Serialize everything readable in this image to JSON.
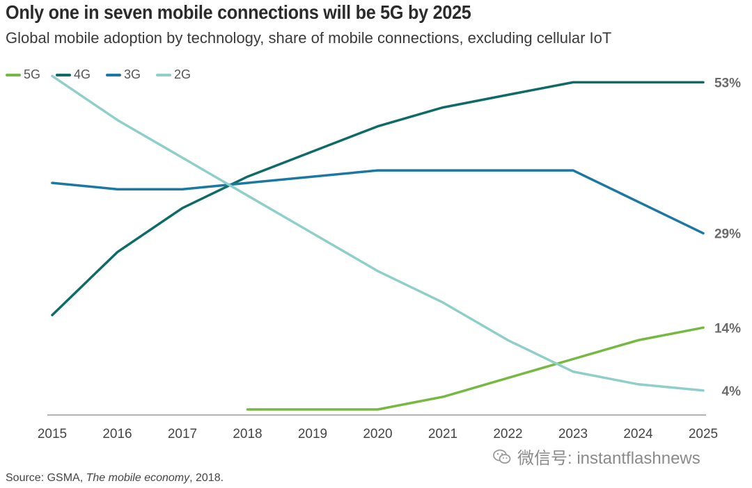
{
  "header": {
    "title": "Only one in seven mobile connections will be 5G by 2025",
    "subtitle": "Global mobile adoption by technology, share of mobile connections, excluding cellular IoT"
  },
  "source": {
    "prefix": "Source: GSMA, ",
    "publication": "The mobile economy",
    "suffix": ", 2018."
  },
  "watermark": {
    "text": "微信号: instantflashnews"
  },
  "chart_data": {
    "type": "line",
    "title": "Only one in seven mobile connections will be 5G by 2025",
    "subtitle": "Global mobile adoption by technology, share of mobile connections, excluding cellular IoT",
    "xlabel": "",
    "ylabel": "",
    "x": [
      "2015",
      "2016",
      "2017",
      "2018",
      "2019",
      "2020",
      "2021",
      "2022",
      "2023",
      "2024",
      "2025"
    ],
    "ylim": [
      0,
      60
    ],
    "grid": false,
    "legend": "top-left",
    "series": [
      {
        "name": "5G",
        "color": "#76b942",
        "values": [
          null,
          null,
          null,
          1,
          1,
          1,
          3,
          6,
          9,
          12,
          14
        ],
        "end_label": "14%"
      },
      {
        "name": "4G",
        "color": "#0f6b68",
        "values": [
          16,
          26,
          33,
          38,
          42,
          46,
          49,
          51,
          53,
          53,
          53
        ],
        "end_label": "53%"
      },
      {
        "name": "3G",
        "color": "#1b78a2",
        "values": [
          37,
          36,
          36,
          37,
          38,
          39,
          39,
          39,
          39,
          34,
          29
        ],
        "end_label": "29%"
      },
      {
        "name": "2G",
        "color": "#8fcfca",
        "values": [
          54,
          47,
          41,
          35,
          29,
          23,
          18,
          12,
          7,
          5,
          4
        ],
        "end_label": "4%"
      }
    ]
  }
}
